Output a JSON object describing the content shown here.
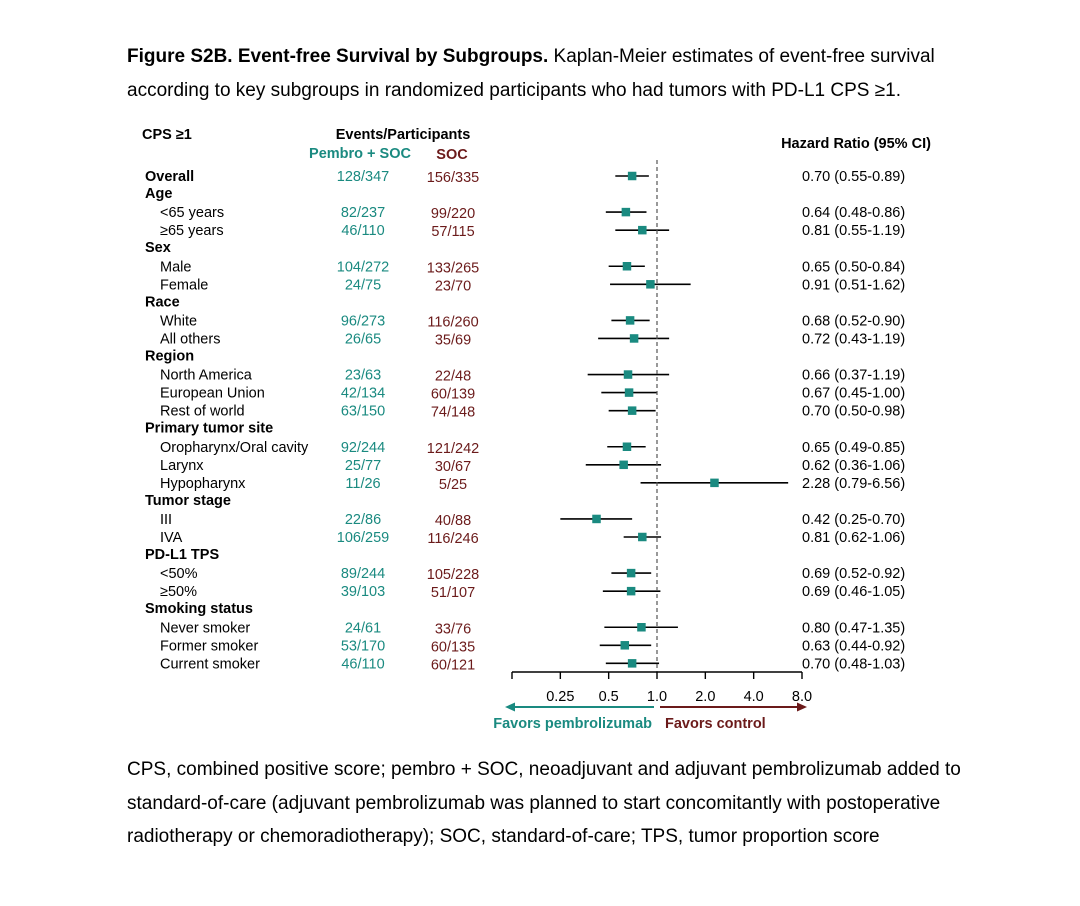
{
  "caption": {
    "bold": "Figure S2B. Event-free Survival by Subgroups.",
    "text": " Kaplan-Meier estimates of event-free survival according to key subgroups in randomized participants who had tumors with PD-L1 CPS ≥1."
  },
  "footnote": "CPS, combined positive score; pembro + SOC, neoadjuvant and adjuvant pembrolizumab added to standard-of-care (adjuvant pembrolizumab was planned to start concomitantly with postoperative radiotherapy or chemoradiotherapy); SOC, standard-of-care; TPS, tumor proportion score",
  "headers": {
    "population": "CPS ≥1",
    "events": "Events/Participants",
    "arm1": "Pembro + SOC",
    "arm2": "SOC",
    "hr": "Hazard Ratio (95% CI)"
  },
  "colors": {
    "arm1": "#1a8a80",
    "arm2": "#6b1a1a",
    "marker": "#1a8a80"
  },
  "chart_data": {
    "type": "forest",
    "x_scale": "log2",
    "xlim": [
      0.125,
      8.0
    ],
    "reference_line": 1.0,
    "xticks": [
      0.25,
      0.5,
      1.0,
      2.0,
      4.0,
      8.0
    ],
    "xtick_labels": [
      "0.25",
      "0.5",
      "1.0",
      "2.0",
      "4.0",
      "8.0"
    ],
    "favors_left": "Favors pembrolizumab",
    "favors_right": "Favors control",
    "rows": [
      {
        "label": "Overall",
        "kind": "group",
        "arm1": "128/347",
        "arm2": "156/335",
        "hr": 0.7,
        "lo": 0.55,
        "hi": 0.89,
        "hr_text": "0.70 (0.55-0.89)"
      },
      {
        "label": "Age",
        "kind": "header"
      },
      {
        "label": "<65 years",
        "kind": "item",
        "arm1": "82/237",
        "arm2": "99/220",
        "hr": 0.64,
        "lo": 0.48,
        "hi": 0.86,
        "hr_text": "0.64 (0.48-0.86)"
      },
      {
        "label": "≥65 years",
        "kind": "item",
        "arm1": "46/110",
        "arm2": "57/115",
        "hr": 0.81,
        "lo": 0.55,
        "hi": 1.19,
        "hr_text": "0.81 (0.55-1.19)"
      },
      {
        "label": "Sex",
        "kind": "header"
      },
      {
        "label": "Male",
        "kind": "item",
        "arm1": "104/272",
        "arm2": "133/265",
        "hr": 0.65,
        "lo": 0.5,
        "hi": 0.84,
        "hr_text": "0.65 (0.50-0.84)"
      },
      {
        "label": "Female",
        "kind": "item",
        "arm1": "24/75",
        "arm2": "23/70",
        "hr": 0.91,
        "lo": 0.51,
        "hi": 1.62,
        "hr_text": "0.91 (0.51-1.62)"
      },
      {
        "label": "Race",
        "kind": "header"
      },
      {
        "label": "White",
        "kind": "item",
        "arm1": "96/273",
        "arm2": "116/260",
        "hr": 0.68,
        "lo": 0.52,
        "hi": 0.9,
        "hr_text": "0.68 (0.52-0.90)"
      },
      {
        "label": "All others",
        "kind": "item",
        "arm1": "26/65",
        "arm2": "35/69",
        "hr": 0.72,
        "lo": 0.43,
        "hi": 1.19,
        "hr_text": "0.72 (0.43-1.19)"
      },
      {
        "label": "Region",
        "kind": "header"
      },
      {
        "label": "North America",
        "kind": "item",
        "arm1": "23/63",
        "arm2": "22/48",
        "hr": 0.66,
        "lo": 0.37,
        "hi": 1.19,
        "hr_text": "0.66 (0.37-1.19)"
      },
      {
        "label": "European Union",
        "kind": "item",
        "arm1": "42/134",
        "arm2": "60/139",
        "hr": 0.67,
        "lo": 0.45,
        "hi": 1.0,
        "hr_text": "0.67 (0.45-1.00)"
      },
      {
        "label": "Rest of world",
        "kind": "item",
        "arm1": "63/150",
        "arm2": "74/148",
        "hr": 0.7,
        "lo": 0.5,
        "hi": 0.98,
        "hr_text": "0.70 (0.50-0.98)"
      },
      {
        "label": "Primary tumor site",
        "kind": "header"
      },
      {
        "label": "Oropharynx/Oral cavity",
        "kind": "item",
        "arm1": "92/244",
        "arm2": "121/242",
        "hr": 0.65,
        "lo": 0.49,
        "hi": 0.85,
        "hr_text": "0.65 (0.49-0.85)"
      },
      {
        "label": "Larynx",
        "kind": "item",
        "arm1": "25/77",
        "arm2": "30/67",
        "hr": 0.62,
        "lo": 0.36,
        "hi": 1.06,
        "hr_text": "0.62 (0.36-1.06)"
      },
      {
        "label": "Hypopharynx",
        "kind": "item",
        "arm1": "11/26",
        "arm2": "5/25",
        "hr": 2.28,
        "lo": 0.79,
        "hi": 6.56,
        "hr_text": "2.28 (0.79-6.56)"
      },
      {
        "label": "Tumor stage",
        "kind": "header"
      },
      {
        "label": "III",
        "kind": "item",
        "arm1": "22/86",
        "arm2": "40/88",
        "hr": 0.42,
        "lo": 0.25,
        "hi": 0.7,
        "hr_text": "0.42 (0.25-0.70)"
      },
      {
        "label": "IVA",
        "kind": "item",
        "arm1": "106/259",
        "arm2": "116/246",
        "hr": 0.81,
        "lo": 0.62,
        "hi": 1.06,
        "hr_text": "0.81 (0.62-1.06)"
      },
      {
        "label": "PD-L1 TPS",
        "kind": "header"
      },
      {
        "label": "<50%",
        "kind": "item",
        "arm1": "89/244",
        "arm2": "105/228",
        "hr": 0.69,
        "lo": 0.52,
        "hi": 0.92,
        "hr_text": "0.69 (0.52-0.92)"
      },
      {
        "label": "≥50%",
        "kind": "item",
        "arm1": "39/103",
        "arm2": "51/107",
        "hr": 0.69,
        "lo": 0.46,
        "hi": 1.05,
        "hr_text": "0.69 (0.46-1.05)"
      },
      {
        "label": "Smoking status",
        "kind": "header"
      },
      {
        "label": "Never smoker",
        "kind": "item",
        "arm1": "24/61",
        "arm2": "33/76",
        "hr": 0.8,
        "lo": 0.47,
        "hi": 1.35,
        "hr_text": "0.80 (0.47-1.35)"
      },
      {
        "label": "Former smoker",
        "kind": "item",
        "arm1": "53/170",
        "arm2": "60/135",
        "hr": 0.63,
        "lo": 0.44,
        "hi": 0.92,
        "hr_text": "0.63 (0.44-0.92)"
      },
      {
        "label": "Current smoker",
        "kind": "item",
        "arm1": "46/110",
        "arm2": "60/121",
        "hr": 0.7,
        "lo": 0.48,
        "hi": 1.03,
        "hr_text": "0.70 (0.48-1.03)"
      }
    ]
  }
}
